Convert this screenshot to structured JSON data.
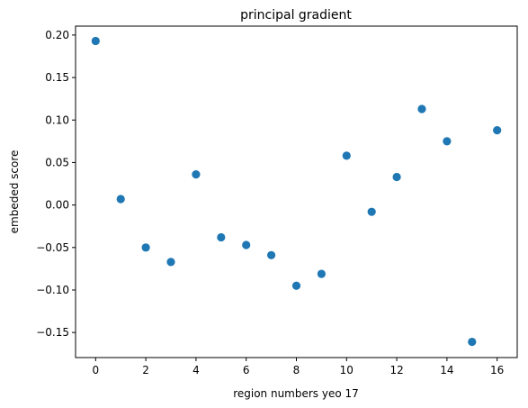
{
  "chart_data": {
    "type": "scatter",
    "title": "principal gradient",
    "xlabel": "region numbers yeo 17",
    "ylabel": "embeded score",
    "xlim": [
      -0.8,
      16.8
    ],
    "ylim": [
      -0.1795,
      0.2105
    ],
    "grid": false,
    "marker_color": "#1f77b4",
    "x_ticks": [
      0,
      2,
      4,
      6,
      8,
      10,
      12,
      14,
      16
    ],
    "x_tick_labels": [
      "0",
      "2",
      "4",
      "6",
      "8",
      "10",
      "12",
      "14",
      "16"
    ],
    "y_ticks": [
      -0.15,
      -0.1,
      -0.05,
      0.0,
      0.05,
      0.1,
      0.15,
      0.2
    ],
    "y_tick_labels": [
      "−0.15",
      "−0.10",
      "−0.05",
      "0.00",
      "0.05",
      "0.10",
      "0.15",
      "0.20"
    ],
    "x": [
      0,
      1,
      2,
      3,
      4,
      5,
      6,
      7,
      8,
      9,
      10,
      11,
      12,
      13,
      14,
      15,
      16
    ],
    "y": [
      0.193,
      0.007,
      -0.05,
      -0.067,
      0.036,
      -0.038,
      -0.047,
      -0.059,
      -0.095,
      -0.081,
      0.058,
      -0.008,
      0.033,
      0.113,
      0.075,
      -0.161,
      0.088
    ]
  }
}
